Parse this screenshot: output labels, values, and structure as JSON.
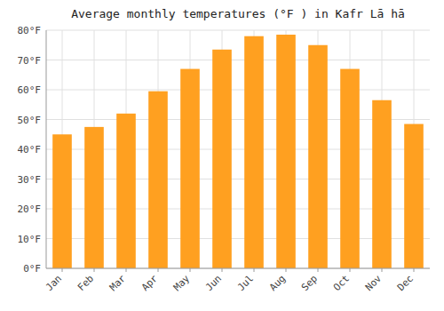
{
  "chart_data": {
    "type": "bar",
    "title": "Average monthly temperatures (°F ) in Kafr Lā hā",
    "categories": [
      "Jan",
      "Feb",
      "Mar",
      "Apr",
      "May",
      "Jun",
      "Jul",
      "Aug",
      "Sep",
      "Oct",
      "Nov",
      "Dec"
    ],
    "values": [
      45,
      47.5,
      52,
      59.5,
      67,
      73.5,
      78,
      78.5,
      75,
      67,
      56.5,
      48.5
    ],
    "color": "#FFA020",
    "ylim": [
      0,
      80
    ],
    "yticks": [
      {
        "value": 0,
        "label": "0°F"
      },
      {
        "value": 10,
        "label": "10°F"
      },
      {
        "value": 20,
        "label": "20°F"
      },
      {
        "value": 30,
        "label": "30°F"
      },
      {
        "value": 40,
        "label": "40°F"
      },
      {
        "value": 50,
        "label": "50°F"
      },
      {
        "value": 60,
        "label": "60°F"
      },
      {
        "value": 70,
        "label": "70°F"
      },
      {
        "value": 80,
        "label": "80°F"
      }
    ],
    "grid": true
  }
}
